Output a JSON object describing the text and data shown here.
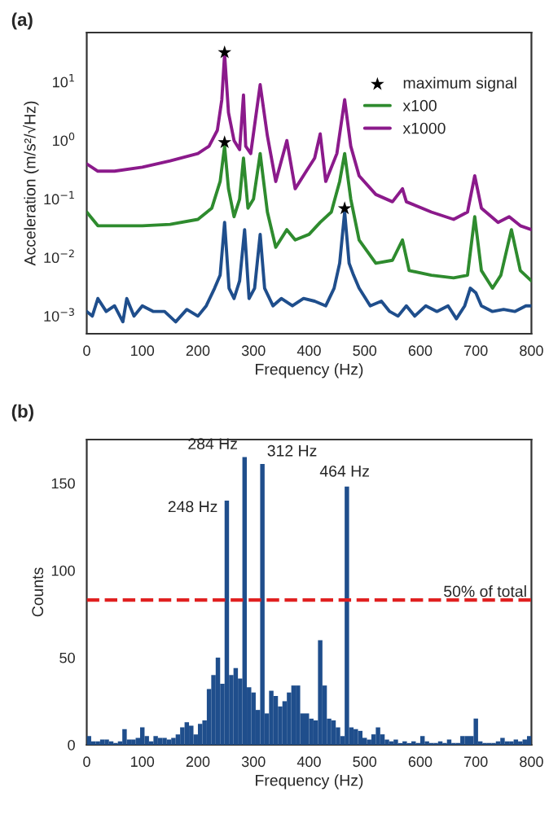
{
  "chart_data": [
    {
      "type": "line",
      "title": "(a)",
      "xlabel": "Frequency (Hz)",
      "ylabel": "Acceleration (m/s²/√Hz)",
      "log": "y",
      "xlim": [
        0,
        800
      ],
      "xticks": [
        0,
        100,
        200,
        300,
        400,
        500,
        600,
        700,
        800
      ],
      "ylim": [
        0.0005,
        70
      ],
      "yticks": [
        {
          "value": 0.001,
          "label": "10$^{−3}$"
        },
        {
          "value": 0.01,
          "label": "10$^{−2}$"
        },
        {
          "value": 0.1,
          "label": "10$^{−1}$"
        },
        {
          "value": 1,
          "label": "10$^{0}$"
        },
        {
          "value": 10,
          "label": "10$^{1}$"
        }
      ],
      "legend": "top right",
      "marker": "none",
      "line_style": "solid",
      "series": [
        {
          "color": "#1f4e8c",
          "x": [
            0,
            10,
            20,
            35,
            50,
            65,
            72,
            85,
            100,
            120,
            140,
            160,
            180,
            200,
            215,
            230,
            240,
            248,
            256,
            265,
            275,
            284,
            292,
            302,
            312,
            320,
            335,
            350,
            370,
            390,
            410,
            430,
            445,
            455,
            464,
            472,
            480,
            490,
            510,
            530,
            545,
            560,
            575,
            590,
            610,
            630,
            650,
            665,
            680,
            690,
            700,
            710,
            730,
            750,
            770,
            790,
            800
          ],
          "values": [
            0.0012,
            0.001,
            0.002,
            0.0012,
            0.0015,
            0.0008,
            0.002,
            0.001,
            0.0015,
            0.0012,
            0.0012,
            0.0008,
            0.0013,
            0.001,
            0.0015,
            0.003,
            0.005,
            0.04,
            0.003,
            0.002,
            0.004,
            0.03,
            0.002,
            0.003,
            0.025,
            0.003,
            0.0015,
            0.002,
            0.0015,
            0.002,
            0.0018,
            0.0015,
            0.003,
            0.008,
            0.06,
            0.008,
            0.005,
            0.003,
            0.0015,
            0.0018,
            0.0012,
            0.001,
            0.0015,
            0.001,
            0.0015,
            0.0012,
            0.0015,
            0.0009,
            0.0015,
            0.003,
            0.0025,
            0.0015,
            0.0012,
            0.0013,
            0.0012,
            0.0015,
            0.0015
          ]
        },
        {
          "type": "scatter",
          "name": "maximum signal",
          "color": "#000000",
          "marker": "star",
          "x": [
            248,
            248,
            464
          ],
          "values": [
            32,
            0.93,
            0.069
          ]
        },
        {
          "name": "x100",
          "color": "#2e8b2e",
          "x": [
            0,
            20,
            50,
            100,
            150,
            200,
            225,
            240,
            248,
            255,
            265,
            275,
            282,
            290,
            300,
            312,
            325,
            340,
            360,
            375,
            400,
            420,
            440,
            455,
            464,
            475,
            490,
            520,
            550,
            568,
            580,
            620,
            660,
            685,
            698,
            710,
            730,
            745,
            764,
            780,
            800
          ],
          "values": [
            0.06,
            0.035,
            0.035,
            0.035,
            0.037,
            0.045,
            0.07,
            0.2,
            0.8,
            0.15,
            0.05,
            0.1,
            0.5,
            0.07,
            0.1,
            0.6,
            0.06,
            0.015,
            0.03,
            0.02,
            0.025,
            0.04,
            0.06,
            0.2,
            0.6,
            0.1,
            0.02,
            0.008,
            0.009,
            0.02,
            0.006,
            0.005,
            0.0045,
            0.005,
            0.05,
            0.006,
            0.003,
            0.005,
            0.03,
            0.006,
            0.004
          ]
        },
        {
          "name": "x1000",
          "color": "#8b1a8b",
          "x": [
            0,
            20,
            50,
            100,
            150,
            200,
            220,
            235,
            243,
            248,
            255,
            265,
            275,
            282,
            286,
            295,
            312,
            325,
            340,
            360,
            375,
            395,
            410,
            420,
            430,
            450,
            464,
            475,
            490,
            520,
            550,
            568,
            575,
            620,
            660,
            685,
            698,
            710,
            740,
            760,
            780,
            800
          ],
          "values": [
            0.4,
            0.3,
            0.3,
            0.35,
            0.45,
            0.6,
            0.8,
            1.5,
            5,
            30,
            3,
            1.0,
            0.7,
            6,
            0.8,
            0.6,
            9,
            1.2,
            0.2,
            1.0,
            0.15,
            0.3,
            0.5,
            1.3,
            0.2,
            0.6,
            5,
            0.8,
            0.25,
            0.12,
            0.09,
            0.15,
            0.09,
            0.06,
            0.045,
            0.06,
            0.25,
            0.07,
            0.04,
            0.05,
            0.035,
            0.03
          ]
        }
      ]
    },
    {
      "type": "histogram",
      "title": "(b)",
      "xlabel": "Frequency (Hz)",
      "ylabel": "Counts",
      "color": "#1f4e8c",
      "xlim": [
        0,
        800
      ],
      "xticks": [
        0,
        100,
        200,
        300,
        400,
        500,
        600,
        700,
        800
      ],
      "ylim": [
        0,
        175
      ],
      "yticks": [
        0,
        50,
        100,
        150
      ],
      "bins": [
        0,
        8,
        16,
        24,
        32,
        40,
        48,
        56,
        64,
        72,
        80,
        88,
        96,
        104,
        112,
        120,
        128,
        136,
        144,
        152,
        160,
        168,
        176,
        184,
        192,
        200,
        208,
        216,
        224,
        232,
        240,
        248,
        256,
        264,
        272,
        280,
        288,
        296,
        304,
        312,
        320,
        328,
        336,
        344,
        352,
        360,
        368,
        376,
        384,
        392,
        400,
        408,
        416,
        424,
        432,
        440,
        448,
        456,
        464,
        472,
        480,
        488,
        496,
        504,
        512,
        520,
        528,
        536,
        544,
        552,
        560,
        568,
        576,
        584,
        592,
        600,
        608,
        616,
        624,
        632,
        640,
        648,
        656,
        664,
        672,
        680,
        688,
        696,
        704,
        712,
        720,
        728,
        736,
        744,
        752,
        760,
        768,
        776,
        784,
        792,
        800
      ],
      "values": [
        5,
        2,
        2,
        3,
        3,
        2,
        1,
        2,
        9,
        3,
        3,
        4,
        10,
        5,
        2,
        5,
        4,
        4,
        3,
        4,
        6,
        10,
        13,
        11,
        6,
        12,
        14,
        32,
        40,
        50,
        35,
        140,
        40,
        44,
        38,
        165,
        33,
        30,
        20,
        161,
        18,
        31,
        28,
        22,
        25,
        30,
        34,
        34,
        18,
        18,
        15,
        14,
        60,
        34,
        15,
        14,
        10,
        5,
        148,
        10,
        9,
        8,
        4,
        3,
        6,
        10,
        6,
        3,
        2,
        3,
        1,
        2,
        1,
        2,
        1,
        5,
        2,
        1,
        1,
        2,
        1,
        3,
        1,
        1,
        5,
        5,
        5,
        15,
        2,
        1,
        1,
        1,
        2,
        4,
        2,
        2,
        3,
        2,
        3,
        5
      ],
      "ref_lines": [
        {
          "axis": "y",
          "value": 83,
          "label": "50% of total",
          "color": "#e02020",
          "line_style": "dashed"
        }
      ],
      "annotations": [
        {
          "text": "248 Hz",
          "x": 248,
          "y": 140
        },
        {
          "text": "284 Hz",
          "x": 284,
          "y": 165
        },
        {
          "text": "312 Hz",
          "x": 312,
          "y": 161
        },
        {
          "text": "464 Hz",
          "x": 464,
          "y": 148
        }
      ]
    }
  ]
}
